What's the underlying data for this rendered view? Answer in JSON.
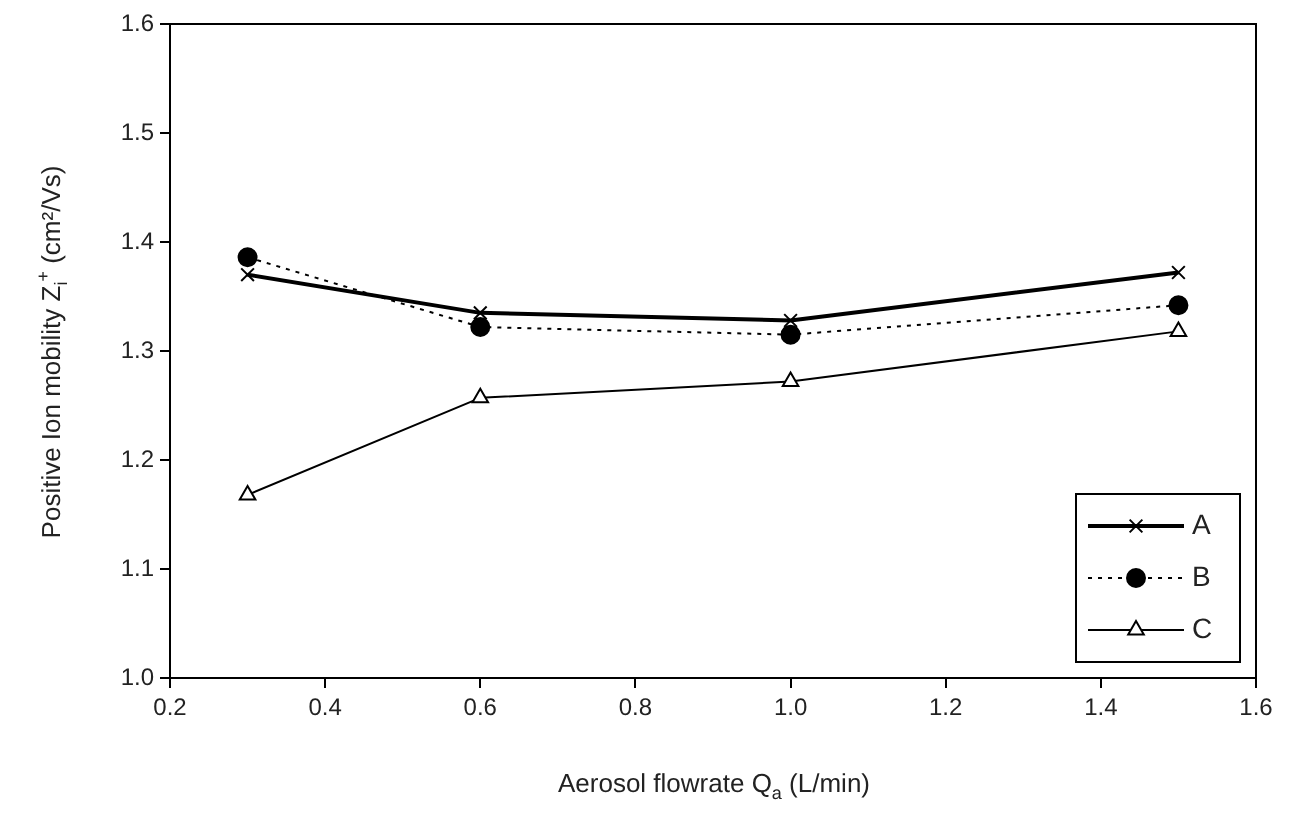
{
  "chart_data": {
    "type": "line",
    "xlabel": "Aerosol flowrate Q$_{a}$ (L/min)",
    "ylabel": "Positive Ion mobility Z$_{i}$$^{+}$ (cm²/Vs)",
    "x": [
      0.3,
      0.6,
      1.0,
      1.5
    ],
    "series": [
      {
        "name": "A",
        "color": "#000000",
        "marker": "cross",
        "line_style": "solid",
        "values": [
          1.37,
          1.335,
          1.328,
          1.372
        ]
      },
      {
        "name": "B",
        "color": "#000000",
        "marker": "circle",
        "line_style": "dotted",
        "values": [
          1.386,
          1.322,
          1.315,
          1.342
        ]
      },
      {
        "name": "C",
        "color": "#000000",
        "marker": "triangle",
        "line_style": "solid",
        "values": [
          1.168,
          1.257,
          1.272,
          1.318
        ]
      }
    ],
    "xlim": [
      0.2,
      1.6
    ],
    "xticks": [
      0.2,
      0.4,
      0.6,
      0.8,
      {
        "value": 1,
        "label": "1.0"
      },
      1.2,
      1.4,
      1.6
    ],
    "ylim": [
      1.0,
      1.6
    ],
    "yticks": [
      {
        "value": 1,
        "label": "1.0"
      },
      1.1,
      1.2,
      1.3,
      1.4,
      1.5,
      1.6
    ],
    "grid": false,
    "legend": "bottom right"
  }
}
